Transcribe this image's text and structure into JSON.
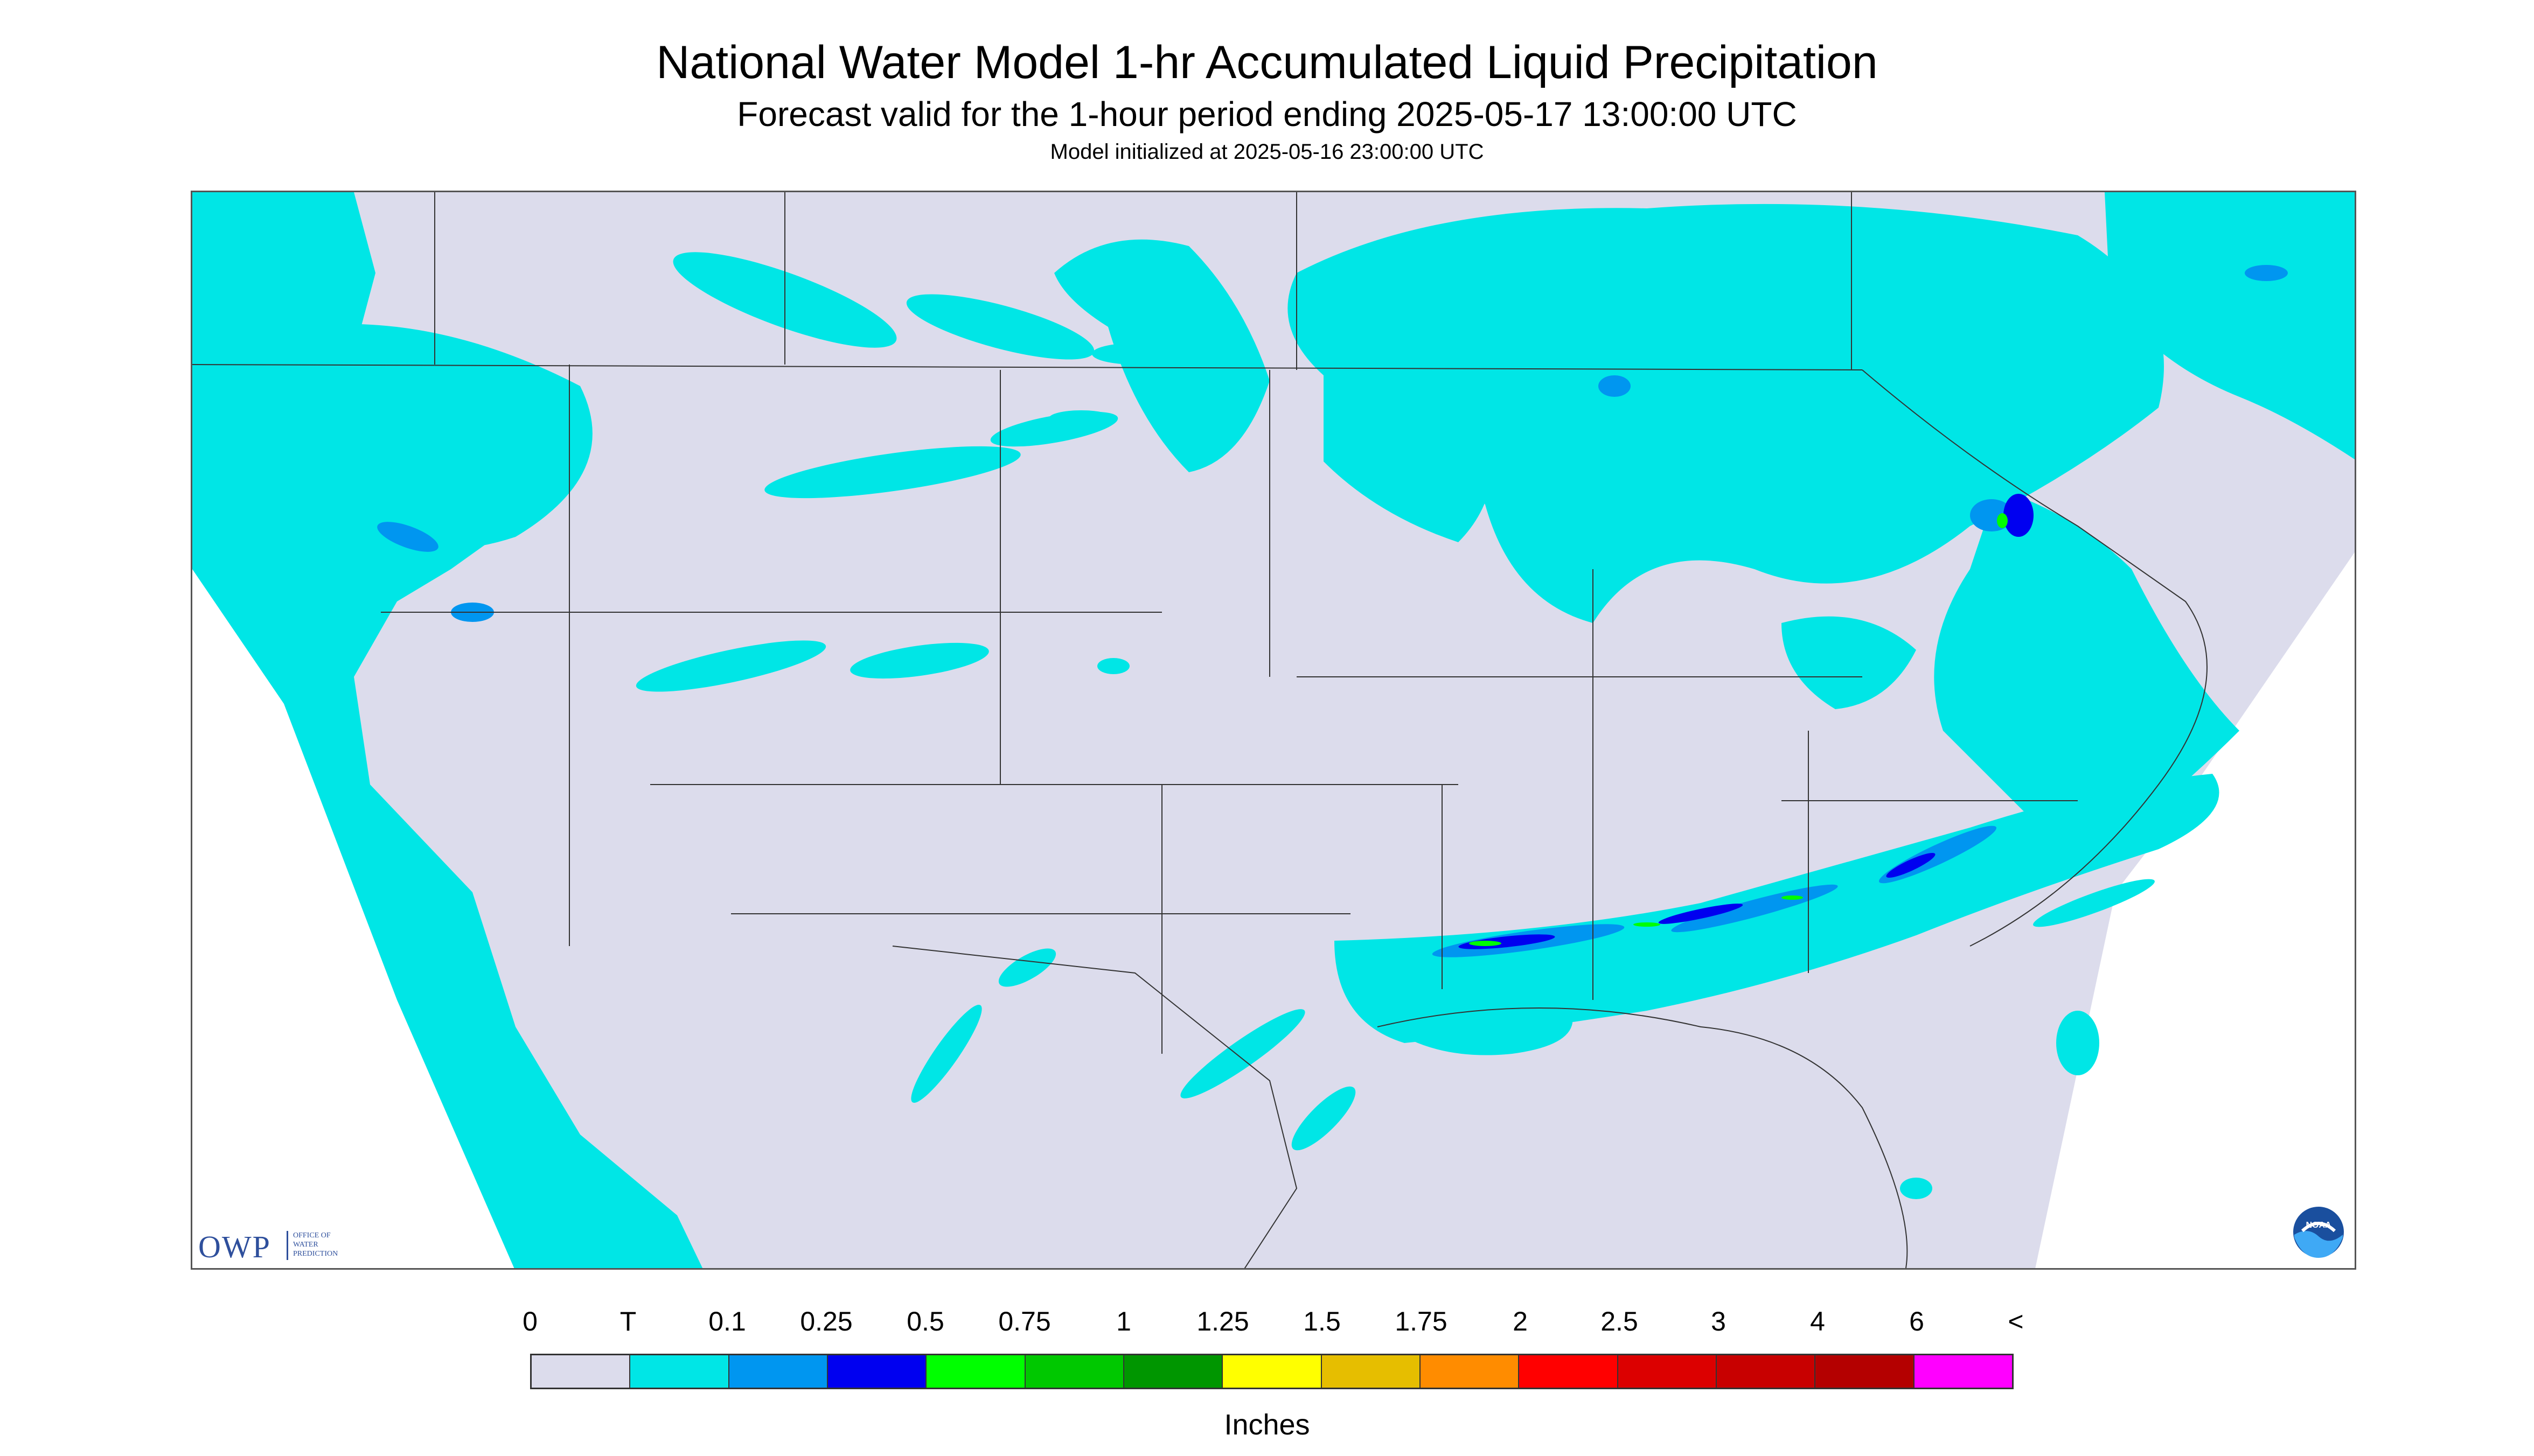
{
  "title": "National Water Model 1-hr Accumulated Liquid Precipitation",
  "subtitle": "Forecast valid for the 1-hour period ending 2025-05-17 13:00:00 UTC",
  "init_line": "Model initialized at 2025-05-16 23:00:00 UTC",
  "logo": {
    "acronym": "OWP",
    "line1": "OFFICE OF",
    "line2": "WATER",
    "line3": "PREDICTION"
  },
  "noaa_logo": "NOAA",
  "legend": {
    "labels": [
      "0",
      "T",
      "0.1",
      "0.25",
      "0.5",
      "0.75",
      "1",
      "1.25",
      "1.5",
      "1.75",
      "2",
      "2.5",
      "3",
      "4",
      "6",
      "<"
    ],
    "colors": [
      "#dcdcec",
      "#00e6e6",
      "#0096f0",
      "#0000f0",
      "#00ff00",
      "#00c800",
      "#009600",
      "#ffff00",
      "#e6be00",
      "#ff8c00",
      "#ff0000",
      "#dc0000",
      "#c80000",
      "#b40000",
      "#ff00ff",
      "#9955cc"
    ],
    "units": "Inches"
  },
  "colors": {
    "no_precip": "#dcdcec",
    "trace": "#00e6e6",
    "light": "#0096f0",
    "moderate": "#0000f0",
    "heavy": "#00ff00",
    "outside_domain": "#ffffff",
    "borders": "#333333"
  }
}
